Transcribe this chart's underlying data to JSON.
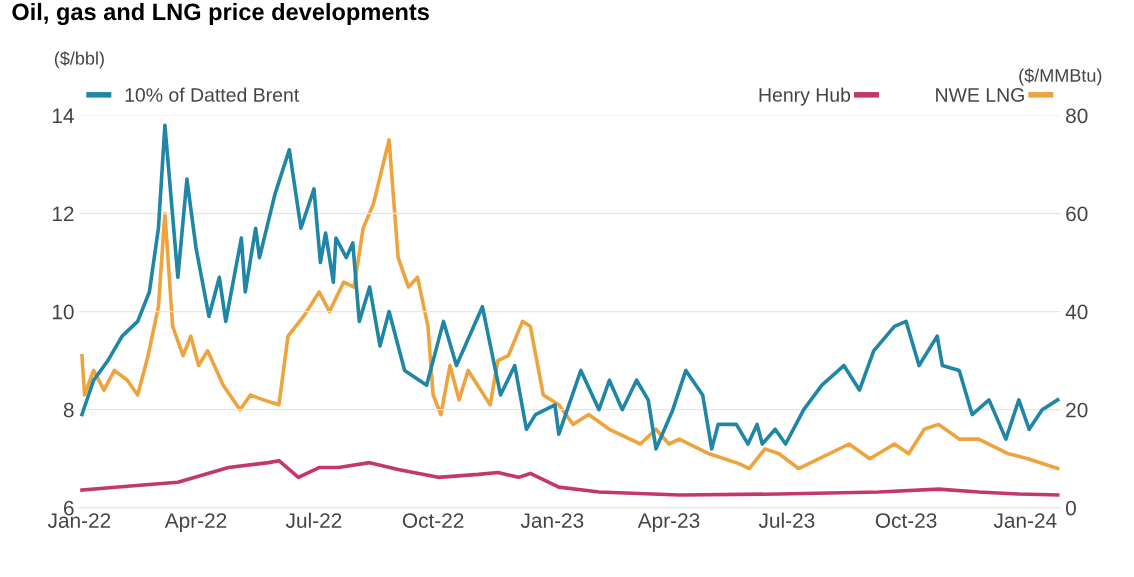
{
  "chart_data": {
    "type": "line",
    "title": "Oil, gas and LNG price developments",
    "ylabel": "($/bbl)",
    "y2label": "($/MMBtu)",
    "xlim": [
      "2022-01-01",
      "2024-01-28"
    ],
    "xticks": [
      {
        "value": "2022-01-01",
        "label": "Jan-22"
      },
      {
        "value": "2022-04-01",
        "label": "Apr-22"
      },
      {
        "value": "2022-07-01",
        "label": "Jul-22"
      },
      {
        "value": "2022-10-01",
        "label": "Oct-22"
      },
      {
        "value": "2023-01-01",
        "label": "Jan-23"
      },
      {
        "value": "2023-04-01",
        "label": "Apr-23"
      },
      {
        "value": "2023-07-01",
        "label": "Jul-23"
      },
      {
        "value": "2023-10-01",
        "label": "Oct-23"
      },
      {
        "value": "2024-01-01",
        "label": "Jan-24"
      }
    ],
    "ylim": [
      6,
      14
    ],
    "yticks": [
      6,
      8,
      10,
      12,
      14
    ],
    "y2lim": [
      0,
      80
    ],
    "y2ticks": [
      0,
      20,
      40,
      60,
      80
    ],
    "grid": "y",
    "legend": "top",
    "marker": "none",
    "line_style": "solid",
    "series": [
      {
        "name": "10% of Datted Brent",
        "color": "#1f86a6",
        "x": [
          "2022-01-03",
          "2022-01-12",
          "2022-01-23",
          "2022-02-03",
          "2022-02-15",
          "2022-02-24",
          "2022-03-03",
          "2022-03-08",
          "2022-03-18",
          "2022-03-25",
          "2022-04-01",
          "2022-04-11",
          "2022-04-19",
          "2022-04-24",
          "2022-05-06",
          "2022-05-09",
          "2022-05-17",
          "2022-05-20",
          "2022-06-01",
          "2022-06-12",
          "2022-06-21",
          "2022-07-01",
          "2022-07-06",
          "2022-07-10",
          "2022-07-16",
          "2022-07-18",
          "2022-07-26",
          "2022-07-31",
          "2022-08-05",
          "2022-08-13",
          "2022-08-21",
          "2022-08-28",
          "2022-09-09",
          "2022-09-26",
          "2022-10-09",
          "2022-10-19",
          "2022-11-08",
          "2022-11-22",
          "2022-12-03",
          "2022-12-12",
          "2022-12-19",
          "2023-01-03",
          "2023-01-06",
          "2023-01-23",
          "2023-02-06",
          "2023-02-14",
          "2023-02-24",
          "2023-03-07",
          "2023-03-16",
          "2023-03-22",
          "2023-04-04",
          "2023-04-14",
          "2023-04-27",
          "2023-05-04",
          "2023-05-09",
          "2023-05-23",
          "2023-06-01",
          "2023-06-08",
          "2023-06-12",
          "2023-06-22",
          "2023-06-30",
          "2023-07-14",
          "2023-07-28",
          "2023-08-14",
          "2023-08-26",
          "2023-09-06",
          "2023-09-22",
          "2023-10-01",
          "2023-10-11",
          "2023-10-25",
          "2023-10-29",
          "2023-11-11",
          "2023-11-21",
          "2023-12-04",
          "2023-12-17",
          "2023-12-27",
          "2024-01-04",
          "2024-01-14",
          "2024-01-26"
        ],
        "values": [
          7.9,
          8.6,
          9.0,
          9.5,
          9.8,
          10.4,
          11.7,
          13.8,
          10.7,
          12.7,
          11.3,
          9.9,
          10.7,
          9.8,
          11.5,
          10.4,
          11.7,
          11.1,
          12.4,
          13.3,
          11.7,
          12.5,
          11.0,
          11.6,
          10.6,
          11.5,
          11.1,
          11.4,
          9.8,
          10.5,
          9.3,
          10.0,
          8.8,
          8.5,
          9.8,
          8.9,
          10.1,
          8.3,
          8.9,
          7.6,
          7.9,
          8.1,
          7.5,
          8.8,
          8.0,
          8.6,
          8.0,
          8.6,
          8.2,
          7.2,
          8.0,
          8.8,
          8.3,
          7.2,
          7.7,
          7.7,
          7.3,
          7.7,
          7.3,
          7.6,
          7.3,
          8.0,
          8.5,
          8.9,
          8.4,
          9.2,
          9.7,
          9.8,
          8.9,
          9.5,
          8.9,
          8.8,
          7.9,
          8.2,
          7.4,
          8.2,
          7.6,
          8.0,
          8.2
        ]
      },
      {
        "name": "Henry Hub",
        "color": "#c2386e",
        "axis": "y2",
        "x": [
          "2022-01-03",
          "2022-02-07",
          "2022-03-18",
          "2022-04-26",
          "2022-05-27",
          "2022-06-04",
          "2022-06-19",
          "2022-07-05",
          "2022-07-20",
          "2022-08-13",
          "2022-09-04",
          "2022-10-05",
          "2022-11-05",
          "2022-11-20",
          "2022-12-06",
          "2022-12-15",
          "2023-01-06",
          "2023-02-06",
          "2023-04-09",
          "2023-06-25",
          "2023-09-10",
          "2023-10-26",
          "2023-11-26",
          "2023-12-27",
          "2024-01-26"
        ],
        "values": [
          3.6,
          4.4,
          5.2,
          8.2,
          9.2,
          9.6,
          6.2,
          8.2,
          8.2,
          9.2,
          7.8,
          6.2,
          6.8,
          7.2,
          6.2,
          7.0,
          4.2,
          3.2,
          2.6,
          2.8,
          3.2,
          3.8,
          3.2,
          2.8,
          2.6
        ]
      },
      {
        "name": "NWE LNG",
        "color": "#eda43f",
        "axis": "y2",
        "x": [
          "2022-01-03",
          "2022-01-05",
          "2022-01-12",
          "2022-01-20",
          "2022-01-28",
          "2022-02-07",
          "2022-02-15",
          "2022-02-23",
          "2022-03-03",
          "2022-03-08",
          "2022-03-14",
          "2022-03-22",
          "2022-03-28",
          "2022-04-03",
          "2022-04-10",
          "2022-04-22",
          "2022-05-05",
          "2022-05-13",
          "2022-05-23",
          "2022-06-04",
          "2022-06-11",
          "2022-06-23",
          "2022-07-05",
          "2022-07-13",
          "2022-07-24",
          "2022-08-01",
          "2022-08-08",
          "2022-08-16",
          "2022-08-28",
          "2022-09-04",
          "2022-09-12",
          "2022-09-19",
          "2022-09-27",
          "2022-10-01",
          "2022-10-07",
          "2022-10-14",
          "2022-10-21",
          "2022-10-28",
          "2022-11-14",
          "2022-11-20",
          "2022-11-28",
          "2022-12-09",
          "2022-12-15",
          "2022-12-25",
          "2023-01-06",
          "2023-01-17",
          "2023-01-29",
          "2023-02-14",
          "2023-03-10",
          "2023-03-22",
          "2023-04-01",
          "2023-04-09",
          "2023-05-02",
          "2023-05-25",
          "2023-06-02",
          "2023-06-14",
          "2023-06-25",
          "2023-07-10",
          "2023-07-26",
          "2023-08-18",
          "2023-09-03",
          "2023-09-22",
          "2023-10-03",
          "2023-10-15",
          "2023-10-26",
          "2023-11-11",
          "2023-11-26",
          "2023-12-19",
          "2024-01-03",
          "2024-01-26"
        ],
        "values": [
          31,
          23,
          28,
          24,
          28,
          26,
          23,
          31,
          41,
          60,
          37,
          31,
          35,
          29,
          32,
          25,
          20,
          23,
          22,
          21,
          35,
          39,
          44,
          40,
          46,
          45,
          57,
          62,
          75,
          51,
          45,
          47,
          37,
          23,
          19,
          29,
          22,
          28,
          21,
          30,
          31,
          38,
          37,
          23,
          21,
          17,
          19,
          16,
          13,
          16,
          13,
          14,
          11,
          9,
          8,
          12,
          11,
          8,
          10,
          13,
          10,
          13,
          11,
          16,
          17,
          14,
          14,
          11,
          10,
          8
        ]
      }
    ]
  }
}
